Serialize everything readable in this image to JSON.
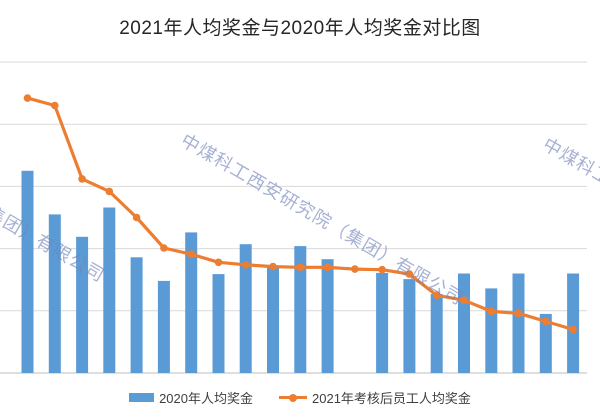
{
  "title": "2021年人均奖金与2020年人均奖金对比图",
  "watermark_text": "中煤科工西安研究院（集团）有限公司",
  "legend": {
    "bar_series_label": "2020年人均奖金",
    "line_series_label": "2021年考核后员工人均奖金"
  },
  "colors": {
    "bar": "#5B9BD5",
    "line": "#ED7D31",
    "gridline": "#D9D9D9",
    "axis_line": "#C9C9C9",
    "title_text": "#262626",
    "legend_text": "#404040",
    "watermark": "rgba(113,129,184,0.62)",
    "background": "#FFFFFF"
  },
  "chart_data": {
    "type": "bar",
    "subtype": "combo-bar-line",
    "title": "2021年人均奖金与2020年人均奖金对比图",
    "x_axis": {
      "tick_labels_visible": false,
      "n_categories": 21
    },
    "y_axis": {
      "tick_labels_visible": false,
      "unit_note": "no axis numbers shown; values estimated in horizontal-gridline units (baseline = 0, top gridline = 5)",
      "ylim": [
        0,
        5
      ],
      "gridlines_at": [
        1,
        2,
        3,
        4,
        5
      ]
    },
    "grid": true,
    "legend_position": "bottom",
    "series": [
      {
        "name": "2020年人均奖金",
        "type": "bar",
        "color": "#5B9BD5",
        "values": [
          3.25,
          2.55,
          2.19,
          2.66,
          1.86,
          1.48,
          2.26,
          1.59,
          2.07,
          1.72,
          2.04,
          1.83,
          null,
          1.61,
          1.51,
          1.27,
          1.6,
          1.36,
          1.6,
          0.95,
          1.6
        ]
      },
      {
        "name": "2021年考核后员工人均奖金",
        "type": "line",
        "color": "#ED7D31",
        "values": [
          4.42,
          4.3,
          3.12,
          2.92,
          2.5,
          2.01,
          1.91,
          1.78,
          1.74,
          1.71,
          1.7,
          1.7,
          1.67,
          1.66,
          1.59,
          1.25,
          1.17,
          0.99,
          0.96,
          0.83,
          0.7
        ]
      }
    ]
  }
}
